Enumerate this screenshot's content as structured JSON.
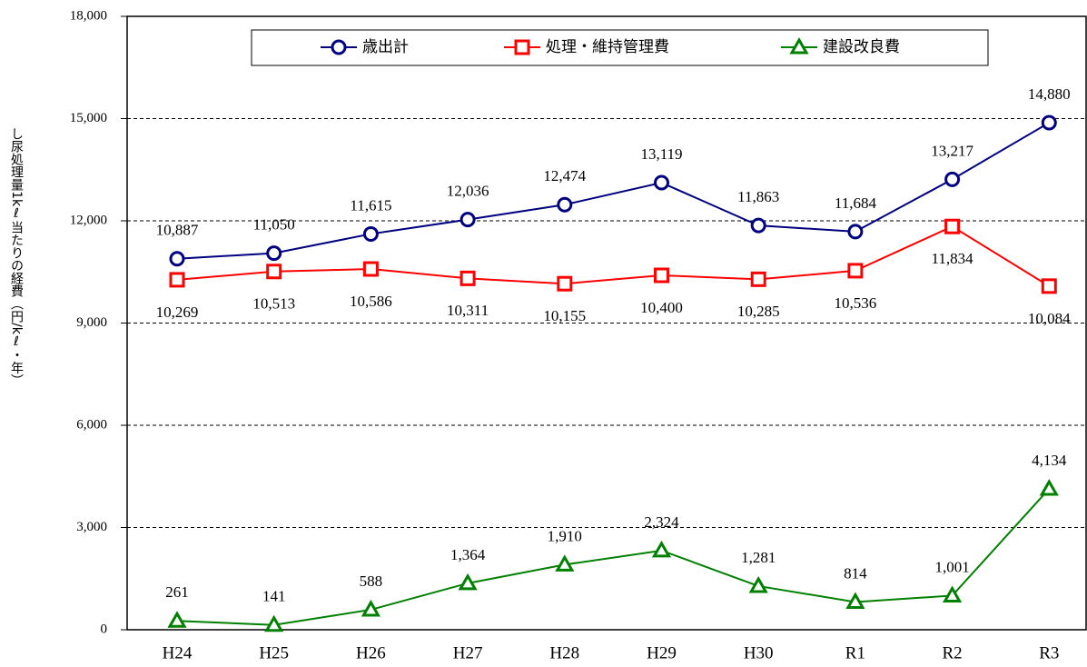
{
  "chart_data": {
    "type": "line",
    "y_label": "し尿処理量1kℓ当たりの経費（円/kℓ・年）",
    "categories": [
      "H24",
      "H25",
      "H26",
      "H27",
      "H28",
      "H29",
      "H30",
      "R1",
      "R2",
      "R3"
    ],
    "series": [
      {
        "name": "歳出計",
        "color": "#000080",
        "marker": "circle",
        "values": [
          10887,
          11050,
          11615,
          12036,
          12474,
          13119,
          11863,
          11684,
          13217,
          14880
        ],
        "value_labels": [
          "10,887",
          "11,050",
          "11,615",
          "12,036",
          "12,474",
          "13,119",
          "11,863",
          "11,684",
          "13,217",
          "14,880"
        ]
      },
      {
        "name": "処理・維持管理費",
        "color": "#ff0000",
        "marker": "square",
        "values": [
          10269,
          10513,
          10586,
          10311,
          10155,
          10400,
          10285,
          10536,
          11834,
          10084
        ],
        "value_labels": [
          "10,269",
          "10,513",
          "10,586",
          "10,311",
          "10,155",
          "10,400",
          "10,285",
          "10,536",
          "11,834",
          "10,084"
        ]
      },
      {
        "name": "建設改良費",
        "color": "#008000",
        "marker": "triangle",
        "values": [
          261,
          141,
          588,
          1364,
          1910,
          2324,
          1281,
          814,
          1001,
          4134
        ],
        "value_labels": [
          "261",
          "141",
          "588",
          "1,364",
          "1,910",
          "2,324",
          "1,281",
          "814",
          "1,001",
          "4,134"
        ]
      }
    ],
    "ylim": [
      0,
      18000
    ],
    "yticks": [
      0,
      {
        "value": 3000,
        "label": "3,000"
      },
      {
        "value": 6000,
        "label": "6,000"
      },
      {
        "value": 9000,
        "label": "9,000"
      },
      {
        "value": 12000,
        "label": "12,000"
      },
      {
        "value": 15000,
        "label": "15,000"
      },
      {
        "value": 18000,
        "label": "18,000"
      }
    ],
    "grid": true,
    "legend": "top"
  }
}
